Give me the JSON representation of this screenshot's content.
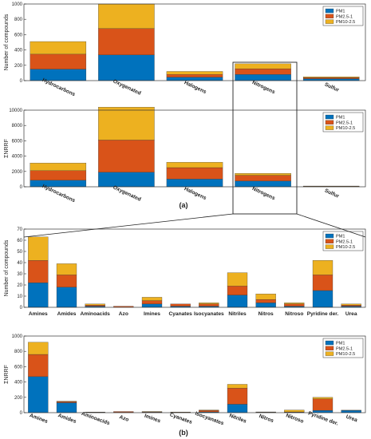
{
  "labels": {
    "a": "(a)",
    "b": "(b)"
  },
  "chart_data": [
    {
      "type": "bar",
      "stacked": true,
      "panel": "a-top",
      "categories": [
        "Hydrocarbons",
        "Oxygenated",
        "Halogens",
        "Nitrogens",
        "Sulfur"
      ],
      "series": [
        {
          "name": "PM1",
          "color": "#0072BD",
          "values": [
            150,
            335,
            45,
            80,
            25
          ]
        },
        {
          "name": "PM2.5-1",
          "color": "#D95319",
          "values": [
            195,
            345,
            35,
            75,
            15
          ]
        },
        {
          "name": "PM10-2.5",
          "color": "#EDB120",
          "values": [
            165,
            320,
            40,
            65,
            10
          ]
        }
      ],
      "ylabel": "Number of compounds",
      "ylim": [
        0,
        1000
      ],
      "yticks": [
        0,
        200,
        400,
        600,
        800,
        1000
      ],
      "legend": "top-right",
      "grid": false
    },
    {
      "type": "bar",
      "stacked": true,
      "panel": "a-bottom",
      "categories": [
        "Hydrocarbons",
        "Oxygenated",
        "Halogens",
        "Nitrogens",
        "Sulfur"
      ],
      "series": [
        {
          "name": "PM1",
          "color": "#0072BD",
          "values": [
            850,
            1900,
            1000,
            750,
            30
          ]
        },
        {
          "name": "PM2.5-1",
          "color": "#D95319",
          "values": [
            1250,
            4200,
            1500,
            750,
            50
          ]
        },
        {
          "name": "PM10-2.5",
          "color": "#EDB120",
          "values": [
            1000,
            4300,
            700,
            250,
            20
          ]
        }
      ],
      "ylabel": "ΣNRRF",
      "ylim": [
        0,
        10000
      ],
      "yticks": [
        0,
        2000,
        4000,
        6000,
        8000,
        10000
      ],
      "legend": "top-right",
      "grid": false
    },
    {
      "type": "bar",
      "stacked": true,
      "panel": "b-top",
      "categories": [
        "Amines",
        "Amides",
        "Aminoacids",
        "Azo",
        "Imines",
        "Cyanates",
        "Isocyanates",
        "Nitriles",
        "Nitros",
        "Nitroso",
        "Pyridine der.",
        "Urea"
      ],
      "series": [
        {
          "name": "PM1",
          "color": "#0072BD",
          "values": [
            22,
            18,
            1,
            0,
            3,
            1,
            1,
            11,
            4,
            1,
            15,
            1
          ]
        },
        {
          "name": "PM2.5-1",
          "color": "#D95319",
          "values": [
            20,
            11,
            1,
            1,
            3,
            2,
            2,
            8,
            3,
            2,
            14,
            1
          ]
        },
        {
          "name": "PM10-2.5",
          "color": "#EDB120",
          "values": [
            21,
            10,
            1,
            0,
            3,
            0,
            1,
            12,
            5,
            1,
            13,
            1
          ]
        }
      ],
      "ylabel": "Number of compounds",
      "ylim": [
        0,
        70
      ],
      "yticks": [
        0,
        10,
        20,
        30,
        40,
        50,
        60,
        70
      ],
      "legend": "top-right",
      "grid": false
    },
    {
      "type": "bar",
      "stacked": true,
      "panel": "b-bottom",
      "categories": [
        "Amines",
        "Amides",
        "Aminoacids",
        "Azo",
        "Imines",
        "Cyanates",
        "Isocyanates",
        "Nitriles",
        "Nitros",
        "Nitroso",
        "Pyridine der.",
        "Urea"
      ],
      "series": [
        {
          "name": "PM1",
          "color": "#0072BD",
          "values": [
            470,
            130,
            3,
            5,
            5,
            4,
            10,
            110,
            5,
            5,
            30,
            30
          ]
        },
        {
          "name": "PM2.5-1",
          "color": "#D95319",
          "values": [
            290,
            15,
            2,
            10,
            5,
            3,
            20,
            210,
            3,
            5,
            150,
            1
          ]
        },
        {
          "name": "PM10-2.5",
          "color": "#EDB120",
          "values": [
            160,
            5,
            2,
            0,
            5,
            2,
            5,
            50,
            2,
            25,
            20,
            1
          ]
        }
      ],
      "ylabel": "ΣNRRF",
      "ylim": [
        0,
        1000
      ],
      "yticks": [
        0,
        200,
        400,
        600,
        800,
        1000
      ],
      "legend": "top-right",
      "grid": false
    }
  ]
}
